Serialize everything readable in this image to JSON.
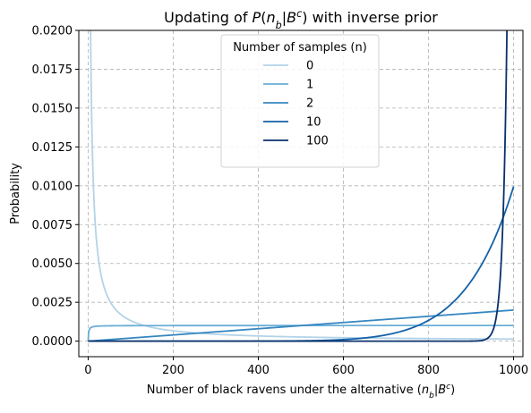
{
  "chart_data": {
    "type": "line",
    "title": "Updating of P(n_b|B^c) with inverse prior",
    "title_parts": [
      "Updating of ",
      "P",
      "(",
      "n",
      "b",
      "|",
      "B",
      "c",
      ") with inverse prior"
    ],
    "xlabel": "Number of black ravens under the alternative (n_b|B^c)",
    "xlabel_parts": [
      "Number of black ravens under the alternative (",
      "n",
      "b",
      "|",
      "B",
      "c",
      ")"
    ],
    "ylabel": "Probability",
    "xlim": [
      -22,
      1022
    ],
    "ylim": [
      -0.001,
      0.02
    ],
    "xticks": [
      0,
      200,
      400,
      600,
      800,
      1000
    ],
    "xtick_labels": [
      "0",
      "200",
      "400",
      "600",
      "800",
      "1000"
    ],
    "yticks": [
      0.0,
      0.0025,
      0.005,
      0.0075,
      0.01,
      0.0125,
      0.015,
      0.0175,
      0.02
    ],
    "ytick_labels": [
      "0.0000",
      "0.0025",
      "0.0050",
      "0.0075",
      "0.0100",
      "0.0125",
      "0.0150",
      "0.0175",
      "0.0200"
    ],
    "grid": true,
    "legend": {
      "title": "Number of samples (n)",
      "placement": "upper-center"
    },
    "x_max": 1000,
    "series": [
      {
        "name": "0",
        "n": 0,
        "color": "#b3d3e8"
      },
      {
        "name": "1",
        "n": 1,
        "color": "#6aaed6"
      },
      {
        "name": "2",
        "n": 2,
        "color": "#3787c0"
      },
      {
        "name": "10",
        "n": 10,
        "color": "#1461a8"
      },
      {
        "name": "100",
        "n": 100,
        "color": "#08306b"
      }
    ]
  }
}
